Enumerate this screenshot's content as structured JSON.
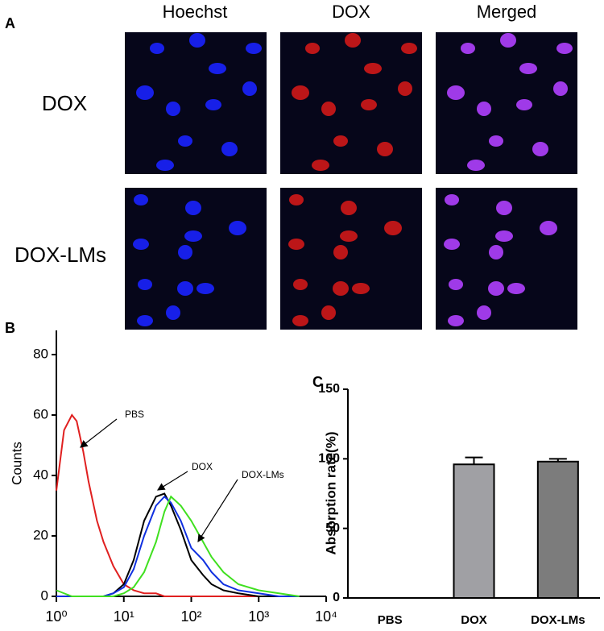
{
  "panel_a": {
    "label": "A",
    "columns": [
      "Hoechst",
      "DOX",
      "Merged"
    ],
    "rows": [
      "DOX",
      "DOX-LMs"
    ]
  },
  "chart_data": [
    {
      "type": "line",
      "panel_label": "B",
      "y_label": "Counts",
      "log_x": true,
      "x": [
        1,
        1.3,
        1.7,
        2,
        2.5,
        3,
        4,
        5,
        7,
        10,
        14,
        20,
        30,
        40,
        50,
        70,
        100,
        150,
        200,
        300,
        500,
        1000,
        2000,
        4000
      ],
      "series": [
        {
          "color": "#e02020",
          "values": [
            35,
            55,
            60,
            58,
            48,
            38,
            25,
            18,
            10,
            4,
            2,
            1,
            1,
            0,
            0,
            0,
            0,
            0,
            0,
            0,
            0,
            0,
            0,
            0
          ]
        },
        {
          "color": "#000000",
          "values": [
            0,
            0,
            0,
            0,
            0,
            0,
            0,
            0,
            1,
            4,
            12,
            25,
            33,
            34,
            30,
            22,
            12,
            7,
            4,
            2,
            1,
            0,
            0,
            0
          ]
        },
        {
          "color": "#1030e0",
          "values": [
            0,
            0,
            0,
            0,
            0,
            0,
            0,
            0,
            1,
            3,
            9,
            20,
            30,
            33,
            31,
            25,
            16,
            12,
            8,
            4,
            2,
            1,
            0,
            0
          ]
        },
        {
          "color": "#40e020",
          "values": [
            2,
            1,
            0,
            0,
            0,
            0,
            0,
            0,
            0,
            1,
            3,
            8,
            18,
            28,
            33,
            30,
            25,
            18,
            13,
            8,
            4,
            2,
            1,
            0
          ]
        }
      ],
      "annotations": [
        "PBS",
        "DOX",
        "DOX-LMs"
      ],
      "xlim": [
        1,
        10000
      ],
      "xticks": [
        {
          "value": 1,
          "label": "10⁰"
        },
        {
          "value": 10,
          "label": "10¹"
        },
        {
          "value": 100,
          "label": "10²"
        },
        {
          "value": 1000,
          "label": "10³"
        },
        {
          "value": 10000,
          "label": "10⁴"
        }
      ],
      "ylim": [
        0,
        88
      ],
      "yticks": [
        0,
        20,
        40,
        60,
        80
      ]
    },
    {
      "type": "bar",
      "panel_label": "C",
      "y_label": "Absorption rate(%)",
      "categories": [
        "PBS",
        "DOX",
        "DOX-LMs"
      ],
      "values": [
        0,
        96,
        98
      ],
      "errors": [
        0,
        5,
        2
      ],
      "colors": [
        "#c8c8c8",
        "#a0a0a4",
        "#7c7c7c"
      ],
      "ylim": [
        0,
        150
      ],
      "yticks": [
        0,
        50,
        100,
        150
      ]
    }
  ]
}
